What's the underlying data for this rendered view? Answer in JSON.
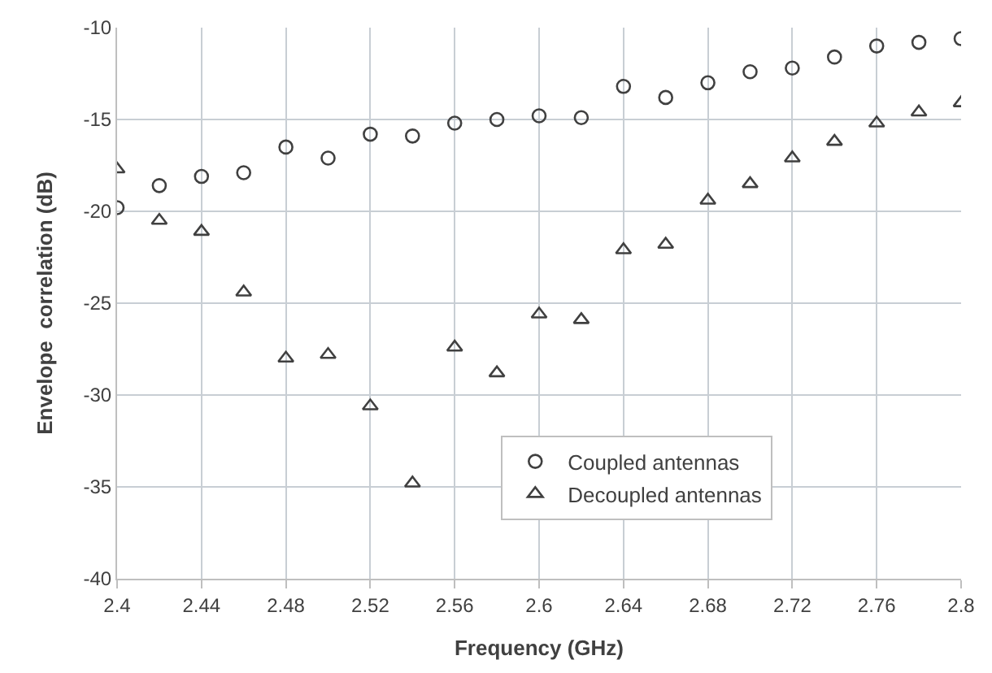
{
  "chart_data": {
    "type": "scatter",
    "xlabel": "Frequency (GHz)",
    "ylabel": "Envelope  correlation (dB)",
    "x": [
      2.4,
      2.42,
      2.44,
      2.46,
      2.48,
      2.5,
      2.52,
      2.54,
      2.56,
      2.58,
      2.6,
      2.62,
      2.64,
      2.66,
      2.68,
      2.7,
      2.72,
      2.74,
      2.76,
      2.78,
      2.8
    ],
    "series": [
      {
        "name": "Coupled antennas",
        "color": "#404040",
        "marker": "circle",
        "values": [
          -19.8,
          -18.6,
          -18.1,
          -17.9,
          -16.5,
          -17.1,
          -15.8,
          -15.9,
          -15.2,
          -15.0,
          -14.8,
          -14.9,
          -13.2,
          -13.8,
          -13.0,
          -12.4,
          -12.2,
          -11.6,
          -11.0,
          -10.8,
          -10.6
        ]
      },
      {
        "name": "Decoupled antennas",
        "color": "#404040",
        "marker": "triangle",
        "values": [
          -17.7,
          -20.5,
          -21.1,
          -24.4,
          -28.0,
          -27.8,
          -30.6,
          -34.8,
          -27.4,
          -28.8,
          -25.6,
          -25.9,
          -22.1,
          -21.8,
          -19.4,
          -18.5,
          -17.1,
          -16.2,
          -15.2,
          -14.6,
          -14.1
        ]
      }
    ],
    "xlim": [
      2.4,
      2.8
    ],
    "xticks": [
      2.4,
      2.44,
      2.48,
      2.52,
      2.56,
      2.6,
      2.64,
      2.68,
      2.72,
      2.76,
      2.8
    ],
    "ylim": [
      -40,
      -10
    ],
    "yticks": [
      -40,
      -35,
      -30,
      -25,
      -20,
      -15,
      -10
    ],
    "grid": true,
    "legend": "bottom right"
  }
}
